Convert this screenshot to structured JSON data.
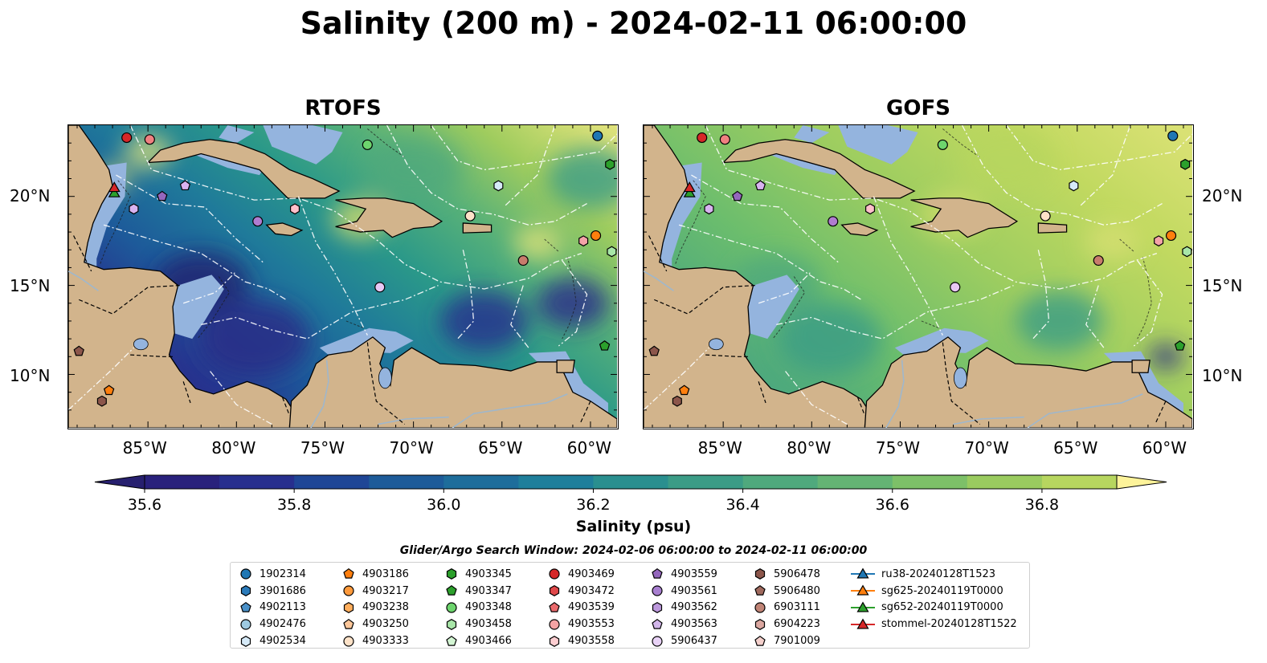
{
  "title": "Salinity (200 m) - 2024-02-11 06:00:00",
  "panels": [
    {
      "title": "RTOFS",
      "gradient": [
        [
          "0%",
          "#2b2283"
        ],
        [
          "12%",
          "#27358f"
        ],
        [
          "25%",
          "#1d5a9a"
        ],
        [
          "40%",
          "#1f7a9a"
        ],
        [
          "55%",
          "#2a9889"
        ],
        [
          "70%",
          "#56b079"
        ],
        [
          "85%",
          "#9fcc5e"
        ],
        [
          "100%",
          "#dfe27a"
        ]
      ]
    },
    {
      "title": "GOFS",
      "gradient": [
        [
          "0%",
          "#3d9e86"
        ],
        [
          "30%",
          "#6bbd6d"
        ],
        [
          "55%",
          "#9dcd60"
        ],
        [
          "80%",
          "#c1d960"
        ],
        [
          "100%",
          "#d9e174"
        ]
      ]
    }
  ],
  "axes": {
    "lon_range": [
      -89.5,
      -58.5
    ],
    "lat_range": [
      7,
      24
    ],
    "xticks": [
      {
        "value": -85,
        "label": "85°W"
      },
      {
        "value": -80,
        "label": "80°W"
      },
      {
        "value": -75,
        "label": "75°W"
      },
      {
        "value": -70,
        "label": "70°W"
      },
      {
        "value": -65,
        "label": "65°W"
      },
      {
        "value": -60,
        "label": "60°W"
      }
    ],
    "yticks": [
      {
        "value": 20,
        "label": "20°N"
      },
      {
        "value": 15,
        "label": "15°N"
      },
      {
        "value": 10,
        "label": "10°N"
      }
    ]
  },
  "colorbar": {
    "label": "Salinity (psu)",
    "min": 35.6,
    "max": 36.9,
    "colors": [
      "#29217c",
      "#272f8e",
      "#1f4696",
      "#1d5b99",
      "#1e6d9b",
      "#1f7f9b",
      "#2a8f8f",
      "#3b9c86",
      "#4fa97d",
      "#64b474",
      "#7dc068",
      "#9acb5f",
      "#b7d65f",
      "#d2df72"
    ],
    "ticks": [
      {
        "value": 35.6,
        "label": "35.6"
      },
      {
        "value": 35.8,
        "label": "35.8"
      },
      {
        "value": 36.0,
        "label": "36.0"
      },
      {
        "value": 36.2,
        "label": "36.2"
      },
      {
        "value": 36.4,
        "label": "36.4"
      },
      {
        "value": 36.6,
        "label": "36.6"
      },
      {
        "value": 36.8,
        "label": "36.8"
      }
    ]
  },
  "search_window": "Glider/Argo Search Window: 2024-02-06 06:00:00 to 2024-02-11 06:00:00",
  "markers": [
    {
      "lon": -86.2,
      "lat": 23.3,
      "shape": "o",
      "color": "#d62728",
      "id": "4903469"
    },
    {
      "lon": -84.9,
      "lat": 23.2,
      "shape": "o",
      "color": "#f08080",
      "id": "4903553"
    },
    {
      "lon": -72.6,
      "lat": 22.9,
      "shape": "o",
      "color": "#6dd46d",
      "id": "4903348"
    },
    {
      "lon": -59.6,
      "lat": 23.4,
      "shape": "o",
      "color": "#1f77b4",
      "id": "1902314"
    },
    {
      "lon": -58.9,
      "lat": 21.8,
      "shape": "hex",
      "color": "#2ca02c",
      "id": "4903345"
    },
    {
      "lon": -65.2,
      "lat": 20.6,
      "shape": "hex",
      "color": "#d6eaf8",
      "id": "4902534"
    },
    {
      "lon": -82.9,
      "lat": 20.6,
      "shape": "pent",
      "color": "#d8b3f0",
      "id": "4903563"
    },
    {
      "lon": -84.2,
      "lat": 20.0,
      "shape": "pent",
      "color": "#9467bd",
      "id": "4903559"
    },
    {
      "lon": -85.8,
      "lat": 19.3,
      "shape": "hex",
      "color": "#d8b3f0",
      "id": "4903562"
    },
    {
      "lon": -78.8,
      "lat": 18.6,
      "shape": "o",
      "color": "#b07cd0",
      "id": "4903561"
    },
    {
      "lon": -76.7,
      "lat": 19.3,
      "shape": "hex",
      "color": "#ffc0cb",
      "id": "4903558"
    },
    {
      "lon": -66.8,
      "lat": 18.9,
      "shape": "o",
      "color": "#fde2c8",
      "id": "4903333"
    },
    {
      "lon": -60.4,
      "lat": 17.5,
      "shape": "hex",
      "color": "#f4a3a8",
      "id": "6904223"
    },
    {
      "lon": -59.7,
      "lat": 17.8,
      "shape": "o",
      "color": "#ff7f0e",
      "id": "4903217"
    },
    {
      "lon": -58.8,
      "lat": 16.9,
      "shape": "hex",
      "color": "#a8e6a8",
      "id": "4903458"
    },
    {
      "lon": -63.8,
      "lat": 16.4,
      "shape": "o",
      "color": "#c87c6c",
      "id": "6903111"
    },
    {
      "lon": -71.9,
      "lat": 14.9,
      "shape": "o",
      "color": "#e8c8f4",
      "id": "5906437"
    },
    {
      "lon": -59.2,
      "lat": 11.6,
      "shape": "pent",
      "color": "#2ca02c",
      "id": "4903347"
    },
    {
      "lon": -88.9,
      "lat": 11.3,
      "shape": "pent",
      "color": "#8c564b",
      "id": "5906480"
    },
    {
      "lon": -87.2,
      "lat": 9.1,
      "shape": "pent",
      "color": "#ff7f0e",
      "id": "4903186"
    },
    {
      "lon": -87.6,
      "lat": 8.5,
      "shape": "hex",
      "color": "#8c564b",
      "id": "5906478"
    },
    {
      "lon": -86.9,
      "lat": 20.2,
      "shape": "tri",
      "color": "#2ca02c",
      "id": "sg652-20240119T0000"
    },
    {
      "lon": -86.9,
      "lat": 20.5,
      "shape": "tri",
      "color": "#d62728",
      "id": "stommel-20240128T1522"
    }
  ],
  "legend": {
    "columns": [
      [
        {
          "label": "1902314",
          "shape": "o",
          "color": "#1f77b4"
        },
        {
          "label": "3901686",
          "shape": "hex",
          "color": "#2b7bba"
        },
        {
          "label": "4902113",
          "shape": "pent",
          "color": "#4a90c8"
        },
        {
          "label": "4902476",
          "shape": "o",
          "color": "#9ecae1"
        },
        {
          "label": "4902534",
          "shape": "hex",
          "color": "#d6eaf8"
        }
      ],
      [
        {
          "label": "4903186",
          "shape": "pent",
          "color": "#ff7f0e"
        },
        {
          "label": "4903217",
          "shape": "o",
          "color": "#ff9a3c"
        },
        {
          "label": "4903238",
          "shape": "hex",
          "color": "#ffae5c"
        },
        {
          "label": "4903250",
          "shape": "pent",
          "color": "#fdc79a"
        },
        {
          "label": "4903333",
          "shape": "o",
          "color": "#fde2c8"
        }
      ],
      [
        {
          "label": "4903345",
          "shape": "hex",
          "color": "#2ca02c"
        },
        {
          "label": "4903347",
          "shape": "pent",
          "color": "#2ca02c"
        },
        {
          "label": "4903348",
          "shape": "o",
          "color": "#6dd46d"
        },
        {
          "label": "4903458",
          "shape": "hex",
          "color": "#a8e6a8"
        },
        {
          "label": "4903466",
          "shape": "pent",
          "color": "#d3f5d3"
        }
      ],
      [
        {
          "label": "4903469",
          "shape": "o",
          "color": "#d62728"
        },
        {
          "label": "4903472",
          "shape": "hex",
          "color": "#e0484a"
        },
        {
          "label": "4903539",
          "shape": "pent",
          "color": "#ea6a6c"
        },
        {
          "label": "4903553",
          "shape": "o",
          "color": "#f4a3a4"
        },
        {
          "label": "4903558",
          "shape": "hex",
          "color": "#fccdd0"
        }
      ],
      [
        {
          "label": "4903559",
          "shape": "pent",
          "color": "#9467bd"
        },
        {
          "label": "4903561",
          "shape": "o",
          "color": "#a87fd0"
        },
        {
          "label": "4903562",
          "shape": "hex",
          "color": "#bc98dc"
        },
        {
          "label": "4903563",
          "shape": "pent",
          "color": "#d2b6ea"
        },
        {
          "label": "5906437",
          "shape": "o",
          "color": "#e8d2f6"
        }
      ],
      [
        {
          "label": "5906478",
          "shape": "hex",
          "color": "#8c564b"
        },
        {
          "label": "5906480",
          "shape": "pent",
          "color": "#a06a5e"
        },
        {
          "label": "6903111",
          "shape": "o",
          "color": "#c08476"
        },
        {
          "label": "6904223",
          "shape": "hex",
          "color": "#dba7a0"
        },
        {
          "label": "7901009",
          "shape": "pent",
          "color": "#f4d0cc"
        }
      ],
      [
        {
          "label": "ru38-20240128T1523",
          "shape": "tri",
          "color": "#1f77b4"
        },
        {
          "label": "sg625-20240119T0000",
          "shape": "tri",
          "color": "#ff7f0e"
        },
        {
          "label": "sg652-20240119T0000",
          "shape": "tri",
          "color": "#2ca02c"
        },
        {
          "label": "stommel-20240128T1522",
          "shape": "tri",
          "color": "#d62728"
        }
      ]
    ]
  }
}
